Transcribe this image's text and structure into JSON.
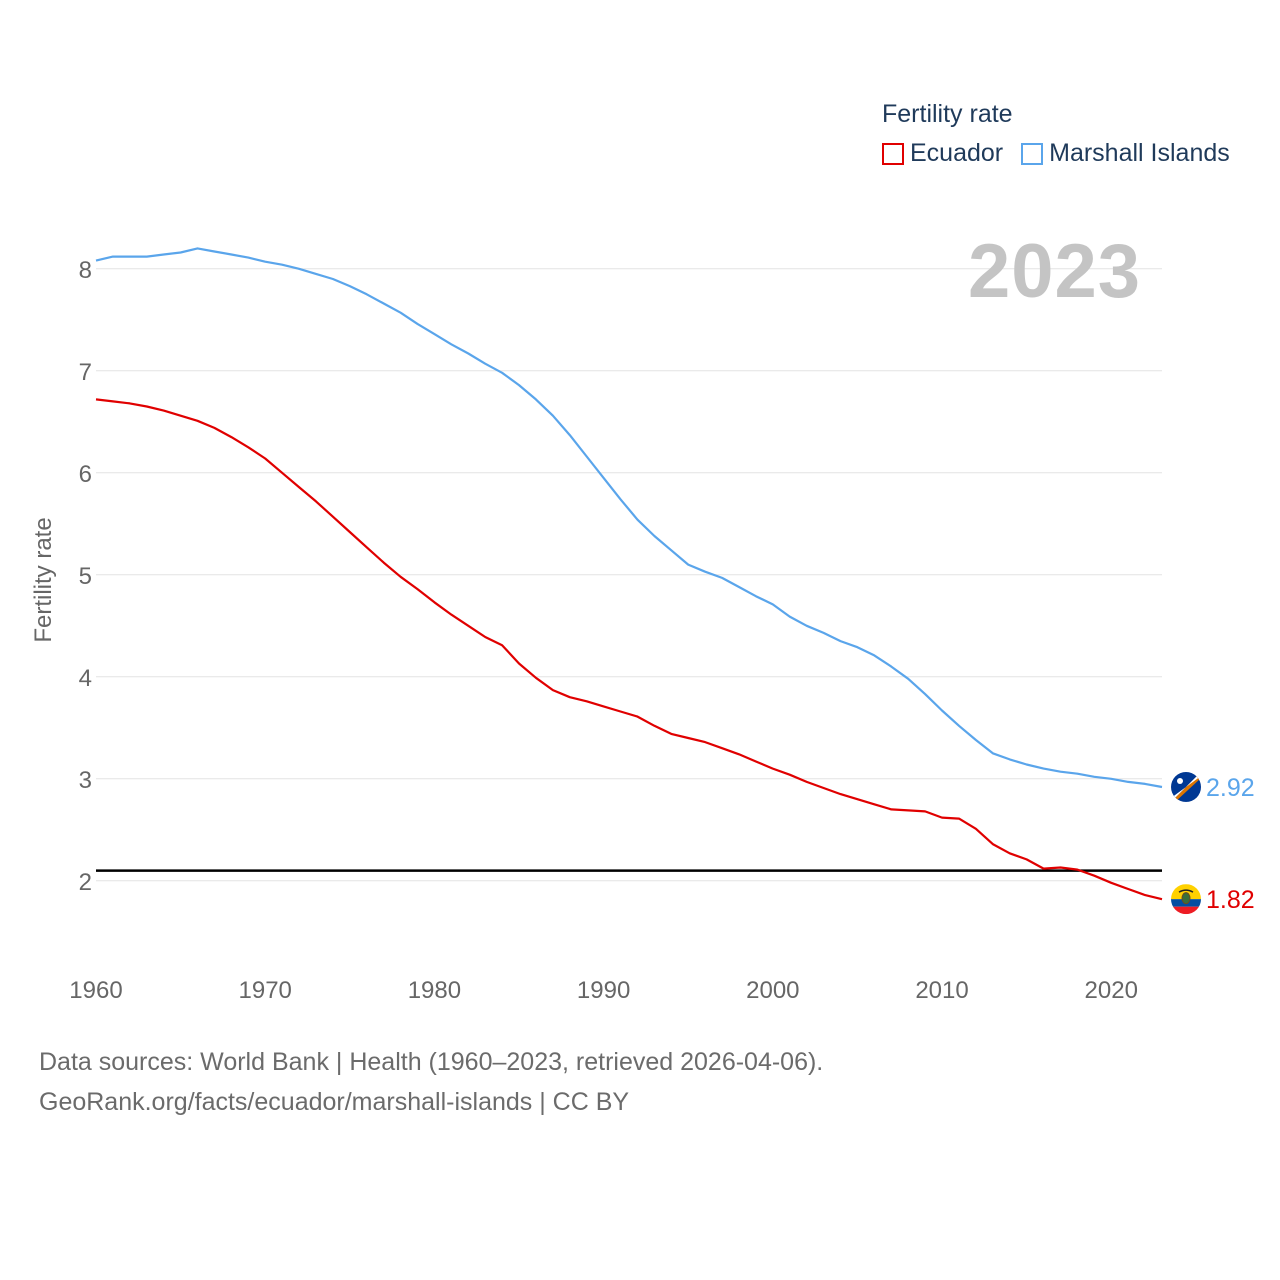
{
  "legend": {
    "title": "Fertility rate",
    "items": [
      {
        "label": "Ecuador",
        "color": "#e00000"
      },
      {
        "label": "Marshall Islands",
        "color": "#5aa5eb"
      }
    ]
  },
  "year_label": "2023",
  "footer": {
    "line1": "Data sources: World Bank | Health (1960–2023, retrieved 2026-04-06).",
    "line2": "GeoRank.org/facts/ecuador/marshall-islands | CC BY"
  },
  "chart_data": {
    "type": "line",
    "ylabel": "Fertility rate",
    "xlabel": "",
    "xlim": [
      1960,
      2023
    ],
    "ylim": [
      1.4,
      8.4
    ],
    "x_ticks": [
      1960,
      1970,
      1980,
      1990,
      2000,
      2010,
      2020
    ],
    "y_ticks": [
      2,
      3,
      4,
      5,
      6,
      7,
      8
    ],
    "reference_line": {
      "y": 2.1,
      "color": "#000000"
    },
    "icons": {
      "ecuador": "ecuador-flag-icon",
      "marshall": "marshall-islands-flag-icon"
    },
    "series": [
      {
        "name": "Ecuador",
        "color": "#e00000",
        "end_label": "1.82",
        "x": [
          1960,
          1961,
          1962,
          1963,
          1964,
          1965,
          1966,
          1967,
          1968,
          1969,
          1970,
          1971,
          1972,
          1973,
          1974,
          1975,
          1976,
          1977,
          1978,
          1979,
          1980,
          1981,
          1982,
          1983,
          1984,
          1985,
          1986,
          1987,
          1988,
          1989,
          1990,
          1991,
          1992,
          1993,
          1994,
          1995,
          1996,
          1997,
          1998,
          1999,
          2000,
          2001,
          2002,
          2003,
          2004,
          2005,
          2006,
          2007,
          2008,
          2009,
          2010,
          2011,
          2012,
          2013,
          2014,
          2015,
          2016,
          2017,
          2018,
          2019,
          2020,
          2021,
          2022,
          2023
        ],
        "values": [
          6.72,
          6.7,
          6.68,
          6.65,
          6.61,
          6.56,
          6.51,
          6.44,
          6.35,
          6.25,
          6.14,
          6.0,
          5.86,
          5.72,
          5.57,
          5.42,
          5.27,
          5.12,
          4.98,
          4.86,
          4.73,
          4.61,
          4.5,
          4.39,
          4.31,
          4.13,
          3.99,
          3.87,
          3.8,
          3.76,
          3.71,
          3.66,
          3.61,
          3.52,
          3.44,
          3.4,
          3.36,
          3.3,
          3.24,
          3.17,
          3.1,
          3.04,
          2.97,
          2.91,
          2.85,
          2.8,
          2.75,
          2.7,
          2.69,
          2.68,
          2.62,
          2.61,
          2.51,
          2.36,
          2.27,
          2.21,
          2.12,
          2.13,
          2.11,
          2.05,
          1.98,
          1.92,
          1.86,
          1.82
        ]
      },
      {
        "name": "Marshall Islands",
        "color": "#5aa5eb",
        "end_label": "2.92",
        "x": [
          1960,
          1961,
          1962,
          1963,
          1964,
          1965,
          1966,
          1967,
          1968,
          1969,
          1970,
          1971,
          1972,
          1973,
          1974,
          1975,
          1976,
          1977,
          1978,
          1979,
          1980,
          1981,
          1982,
          1983,
          1984,
          1985,
          1986,
          1987,
          1988,
          1989,
          1990,
          1991,
          1992,
          1993,
          1994,
          1995,
          1996,
          1997,
          1998,
          1999,
          2000,
          2001,
          2002,
          2003,
          2004,
          2005,
          2006,
          2007,
          2008,
          2009,
          2010,
          2011,
          2012,
          2013,
          2014,
          2015,
          2016,
          2017,
          2018,
          2019,
          2020,
          2021,
          2022,
          2023
        ],
        "values": [
          8.08,
          8.12,
          8.12,
          8.12,
          8.14,
          8.16,
          8.2,
          8.17,
          8.14,
          8.11,
          8.07,
          8.04,
          8.0,
          7.95,
          7.9,
          7.83,
          7.75,
          7.66,
          7.57,
          7.46,
          7.36,
          7.26,
          7.17,
          7.07,
          6.98,
          6.86,
          6.72,
          6.56,
          6.37,
          6.16,
          5.95,
          5.74,
          5.54,
          5.38,
          5.24,
          5.1,
          5.03,
          4.97,
          4.88,
          4.79,
          4.71,
          4.59,
          4.5,
          4.43,
          4.35,
          4.29,
          4.21,
          4.1,
          3.98,
          3.83,
          3.67,
          3.52,
          3.38,
          3.25,
          3.19,
          3.14,
          3.1,
          3.07,
          3.05,
          3.02,
          3.0,
          2.97,
          2.95,
          2.92
        ]
      }
    ]
  }
}
